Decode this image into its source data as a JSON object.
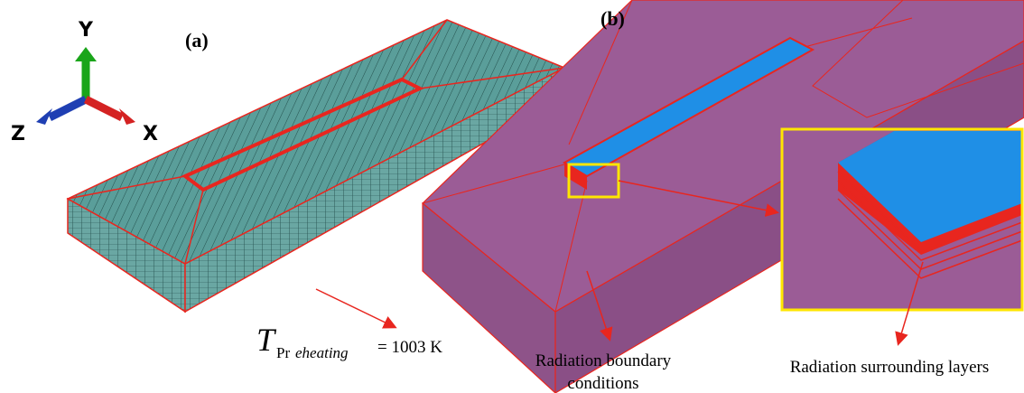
{
  "panel_a": {
    "label": "(a)",
    "axes": {
      "y": "Y",
      "z": "Z",
      "x": "X"
    },
    "annotation": {
      "symbol": "T",
      "subscript": "Pr",
      "subscript_italic": "eheating",
      "value": "= 1003 K"
    }
  },
  "panel_b": {
    "label": "(b)",
    "callouts": [
      {
        "lines": [
          "Radiation boundary",
          "conditions"
        ]
      },
      {
        "lines": [
          "Radiation surrounding layers"
        ]
      }
    ]
  }
}
